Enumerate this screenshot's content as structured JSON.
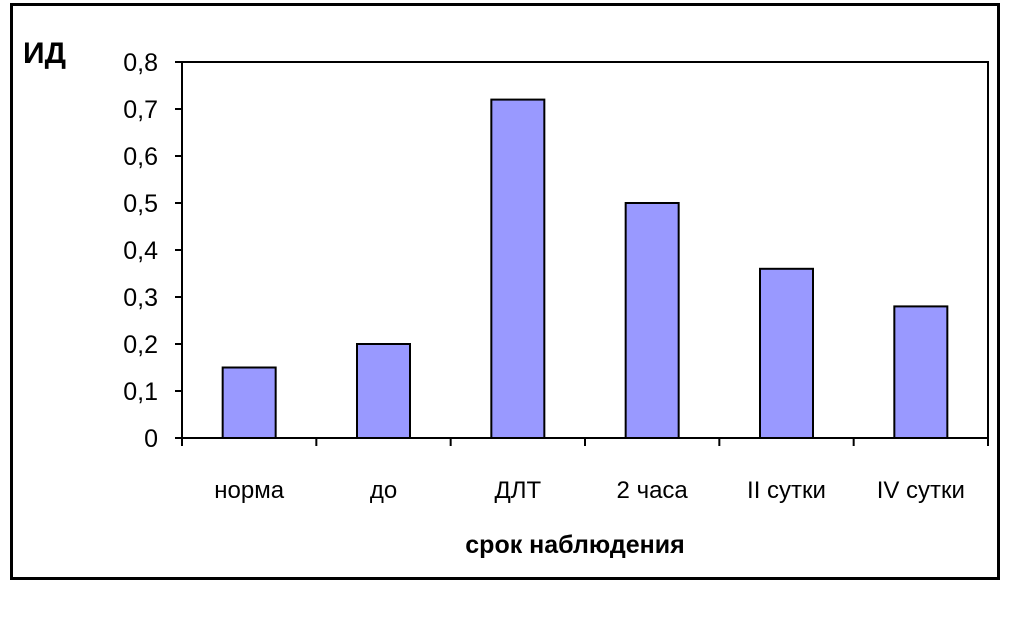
{
  "chart_data": {
    "type": "bar",
    "title": "",
    "ylabel": "ИД",
    "xlabel": "срок наблюдения",
    "categories": [
      "норма",
      "до",
      "ДЛТ",
      "2 часа",
      "II сутки",
      "IV сутки"
    ],
    "values": [
      0.15,
      0.2,
      0.72,
      0.5,
      0.36,
      0.28
    ],
    "ylim": [
      0,
      0.8
    ],
    "yticks": [
      0,
      0.1,
      0.2,
      0.3,
      0.4,
      0.5,
      0.6,
      0.7,
      0.8
    ],
    "ytick_labels": [
      "0",
      "0,1",
      "0,2",
      "0,3",
      "0,4",
      "0,5",
      "0,6",
      "0,7",
      "0,8"
    ],
    "grid": false,
    "legend": "none",
    "colors": {
      "bar": "#9999ff",
      "bar_stroke": "#000000",
      "axis": "#000000"
    }
  }
}
